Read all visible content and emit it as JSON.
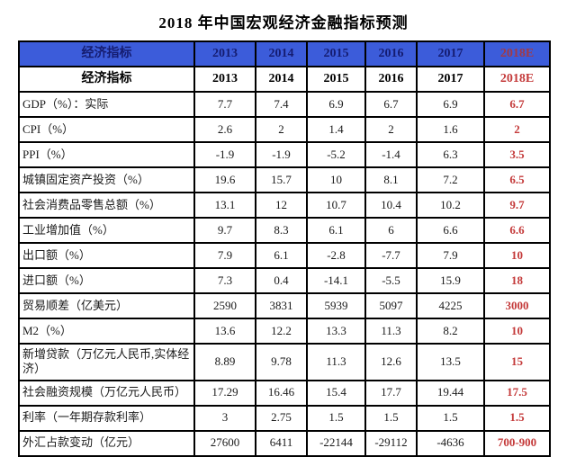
{
  "title": "2018 年中国宏观经济金融指标预测",
  "colors": {
    "header_background": "#3c5cda",
    "header_text": "#151c70",
    "header_forecast_text": "#a33a45",
    "white_header_text": "#000000",
    "forecast_red": "#c43a3a",
    "grid_border": "#000000",
    "body_text": "#1a1a1a"
  },
  "table": {
    "columns": [
      "经济指标",
      "2013",
      "2014",
      "2015",
      "2016",
      "2017",
      "2018E"
    ],
    "rows": [
      {
        "label": "GDP（%）：实际",
        "values": [
          "7.7",
          "7.4",
          "6.9",
          "6.7",
          "6.9",
          "6.7"
        ]
      },
      {
        "label": "CPI（%）",
        "values": [
          "2.6",
          "2",
          "1.4",
          "2",
          "1.6",
          "2"
        ]
      },
      {
        "label": "PPI（%）",
        "values": [
          "-1.9",
          "-1.9",
          "-5.2",
          "-1.4",
          "6.3",
          "3.5"
        ]
      },
      {
        "label": "城镇固定资产投资（%）",
        "values": [
          "19.6",
          "15.7",
          "10",
          "8.1",
          "7.2",
          "6.5"
        ]
      },
      {
        "label": "社会消费品零售总额（%）",
        "values": [
          "13.1",
          "12",
          "10.7",
          "10.4",
          "10.2",
          "9.7"
        ]
      },
      {
        "label": "工业增加值（%）",
        "values": [
          "9.7",
          "8.3",
          "6.1",
          "6",
          "6.6",
          "6.6"
        ]
      },
      {
        "label": "出口额（%）",
        "values": [
          "7.9",
          "6.1",
          "-2.8",
          "-7.7",
          "7.9",
          "10"
        ]
      },
      {
        "label": "进口额（%）",
        "values": [
          "7.3",
          "0.4",
          "-14.1",
          "-5.5",
          "15.9",
          "18"
        ]
      },
      {
        "label": "贸易顺差（亿美元）",
        "values": [
          "2590",
          "3831",
          "5939",
          "5097",
          "4225",
          "3000"
        ]
      },
      {
        "label": "M2（%）",
        "values": [
          "13.6",
          "12.2",
          "13.3",
          "11.3",
          "8.2",
          "10"
        ]
      },
      {
        "label": "新增贷款（万亿元人民币,实体经济）",
        "values": [
          "8.89",
          "9.78",
          "11.3",
          "12.6",
          "13.5",
          "15"
        ]
      },
      {
        "label": "社会融资规模（万亿元人民币）",
        "values": [
          "17.29",
          "16.46",
          "15.4",
          "17.7",
          "19.44",
          "17.5"
        ]
      },
      {
        "label": "利率（一年期存款利率）",
        "values": [
          "3",
          "2.75",
          "1.5",
          "1.5",
          "1.5",
          "1.5"
        ]
      },
      {
        "label": "外汇占款变动（亿元）",
        "values": [
          "27600",
          "6411",
          "-22144",
          "-29112",
          "-4636",
          "700-900"
        ]
      }
    ]
  }
}
